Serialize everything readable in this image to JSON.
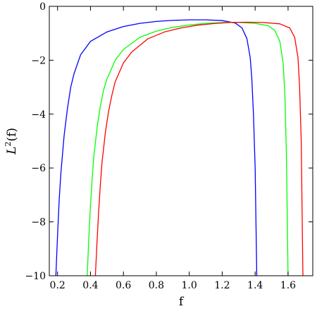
{
  "chart_data": {
    "type": "line",
    "title": "",
    "xlabel": "f",
    "ylabel_main": "L",
    "ylabel_sup": "2",
    "ylabel_rest": "(f)",
    "xlim": [
      0.15,
      1.75
    ],
    "ylim": [
      -10,
      0
    ],
    "xticks": [
      0.2,
      0.4,
      0.6,
      0.8,
      1.0,
      1.2,
      1.4,
      1.6
    ],
    "xtick_labels": [
      "0.2",
      "0.4",
      "0.6",
      "0.8",
      "1.0",
      "1.2",
      "1.4",
      "1.6"
    ],
    "yticks": [
      0,
      -2,
      -4,
      -6,
      -8,
      -10
    ],
    "ytick_labels": [
      "0",
      "−2",
      "−4",
      "−6",
      "−8",
      "−10"
    ],
    "grid": false,
    "legend": "none",
    "series": [
      {
        "color": "#0000ff",
        "x": [
          0.19,
          0.2,
          0.21,
          0.22,
          0.24,
          0.26,
          0.28,
          0.3,
          0.34,
          0.4,
          0.5,
          0.6,
          0.7,
          0.8,
          0.9,
          1.0,
          1.1,
          1.2,
          1.28,
          1.32,
          1.35,
          1.37,
          1.38,
          1.39,
          1.4,
          1.41
        ],
        "y": [
          -10,
          -8.5,
          -7.2,
          -6.2,
          -4.8,
          -3.8,
          -3.0,
          -2.5,
          -1.8,
          -1.3,
          -0.95,
          -0.75,
          -0.63,
          -0.56,
          -0.52,
          -0.5,
          -0.5,
          -0.53,
          -0.62,
          -0.8,
          -1.2,
          -1.9,
          -2.7,
          -4.0,
          -6.0,
          -10
        ]
      },
      {
        "color": "#00ff00",
        "x": [
          0.38,
          0.39,
          0.4,
          0.41,
          0.42,
          0.44,
          0.46,
          0.48,
          0.5,
          0.55,
          0.6,
          0.7,
          0.8,
          0.9,
          1.0,
          1.1,
          1.2,
          1.3,
          1.4,
          1.48,
          1.52,
          1.55,
          1.57,
          1.58,
          1.59,
          1.6
        ],
        "y": [
          -10,
          -8.6,
          -7.4,
          -6.4,
          -5.6,
          -4.5,
          -3.7,
          -3.1,
          -2.7,
          -2.0,
          -1.6,
          -1.15,
          -0.92,
          -0.78,
          -0.69,
          -0.63,
          -0.6,
          -0.6,
          -0.63,
          -0.72,
          -0.9,
          -1.3,
          -2.1,
          -3.2,
          -5.5,
          -10
        ]
      },
      {
        "color": "#ff0000",
        "x": [
          0.43,
          0.44,
          0.45,
          0.46,
          0.47,
          0.49,
          0.51,
          0.53,
          0.55,
          0.6,
          0.65,
          0.75,
          0.85,
          0.95,
          1.05,
          1.15,
          1.25,
          1.35,
          1.45,
          1.55,
          1.61,
          1.64,
          1.66,
          1.67,
          1.68,
          1.69
        ],
        "y": [
          -10,
          -8.7,
          -7.6,
          -6.6,
          -5.8,
          -4.7,
          -3.9,
          -3.3,
          -2.8,
          -2.1,
          -1.7,
          -1.2,
          -0.95,
          -0.8,
          -0.7,
          -0.64,
          -0.6,
          -0.59,
          -0.6,
          -0.65,
          -0.8,
          -1.15,
          -1.9,
          -3.0,
          -5.0,
          -10
        ]
      }
    ]
  }
}
